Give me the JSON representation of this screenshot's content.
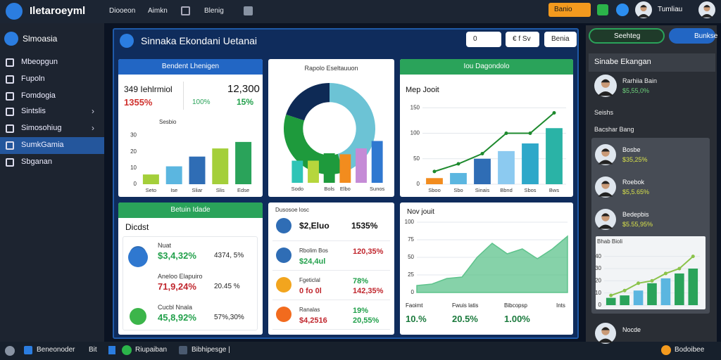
{
  "topbar": {
    "brand": "Iletaroeyml",
    "nav": [
      "Diooeon",
      "Aimkn",
      "Blenig"
    ],
    "button": "Banio",
    "user": "Tumliau"
  },
  "sidebar": {
    "title": "Slmoasia",
    "items": [
      "Mbeopgun",
      "Fupoln",
      "Fomdogia",
      "Sintslis",
      "Simosohiug",
      "SumkGamia",
      "Sbganan"
    ]
  },
  "main": {
    "title": "Sinnaka Ekondani Uetanai",
    "buttons": [
      "0",
      "€ f Sv",
      "Benia"
    ]
  },
  "cards": [
    {
      "title": "Bendent Lhenigen",
      "stats": [
        {
          "label": "349 Iehlrmiol",
          "value": "1355%",
          "color": "#d0312d"
        },
        {
          "label": "12,300",
          "value": "15%",
          "color": "#22a04b"
        }
      ],
      "note": "100%",
      "chart": {
        "type": "bar",
        "title": "Sesbio",
        "categories": [
          "Seto",
          "Ise",
          "Sliar",
          "Slis",
          "Edse"
        ],
        "series": [
          {
            "type": "bar",
            "colors": [
              "#a4cf3a",
              "#5bb6e0",
              "#2f6db5",
              "#a4cf3a",
              "#2aa35a"
            ],
            "values": [
              6,
              11,
              17,
              22,
              26
            ]
          }
        ],
        "ylim": [
          0,
          32
        ],
        "yticks": [
          0,
          10,
          20,
          30
        ],
        "grid": false
      }
    },
    {
      "title": "Rapolo Eseltauuon",
      "donut": {
        "type": "pie",
        "values": [
          45,
          35,
          20
        ],
        "colors": [
          "#6cc3d5",
          "#1e9a3c",
          "#0e2a55"
        ]
      },
      "chart": {
        "type": "bar",
        "categories": [
          "Sodo",
          null,
          "Bols",
          "Elbo",
          null,
          "Sunos"
        ],
        "series": [
          {
            "type": "bar",
            "colors": [
              "#2ec4b6",
              "#b6d63c",
              "#1e9a3c",
              "#f28c1e",
              "#c58bd6",
              "#2f78d0"
            ],
            "values": [
              45,
              45,
              60,
              58,
              70,
              85
            ]
          }
        ],
        "ylim": [
          0,
          100
        ]
      }
    },
    {
      "title": "Iou Dagondolo",
      "subtitle": "Mep Jooit",
      "chart": {
        "type": "bar",
        "categories": [
          "Sboo",
          "Sbo",
          "Sinais",
          "Bbnd",
          "Sbos",
          "Bws"
        ],
        "series": [
          {
            "type": "bar",
            "colors": [
              "#f28c1e",
              "#5bb6e0",
              "#2f6db5",
              "#8ccaf0",
              "#2ea8c9",
              "#2ab3a6"
            ],
            "values": [
              12,
              22,
              50,
              65,
              80,
              110
            ]
          },
          {
            "type": "line",
            "color": "#1e8a2e",
            "values": [
              25,
              40,
              60,
              100,
              100,
              140
            ]
          }
        ],
        "ylim": [
          0,
          160
        ],
        "yticks": [
          0,
          50,
          100,
          150
        ],
        "grid": true
      }
    },
    {
      "title": "Betuin Idade",
      "subtitle": "Dicdst",
      "rows": [
        {
          "label": "Nuat",
          "value": "$3,4,32%",
          "change": "4374, 5%",
          "color": "#22a04b"
        },
        {
          "label": "Aneloo Elapuiro",
          "value": "71,9,24%",
          "change": "20.45 %",
          "color": "#c0262d"
        },
        {
          "label": "Cucbl Nnala",
          "value": "45,8,92%",
          "change": "57%,30%",
          "color": "#22a04b"
        }
      ]
    },
    {
      "title": "Dusosoe losc",
      "rows": [
        {
          "label": "$2,Eluo",
          "value": "1535%",
          "color": "#111111"
        },
        {
          "label": "Rbolim Bos",
          "value": "120,35%",
          "sub": "$24,4ul",
          "color": "#c0262d"
        },
        {
          "label": "Fgeticlal",
          "value": "78%",
          "sub": "0 fo 0l",
          "change": "142,35%",
          "color": "#22a04b"
        },
        {
          "label": "Ranalas",
          "value": "19%",
          "sub": "$4,2516",
          "change": "20,55%",
          "color": "#22a04b"
        }
      ]
    },
    {
      "title": "Nov jouit",
      "chart": {
        "type": "area",
        "series": [
          {
            "type": "area",
            "color": "#5ec38c",
            "values": [
              10,
              12,
              20,
              22,
              50,
              70,
              55,
              62,
              48,
              62,
              80
            ]
          }
        ],
        "ylim": [
          0,
          100
        ],
        "yticks": [
          0,
          25,
          50,
          75,
          100
        ],
        "grid": true
      },
      "footer": [
        {
          "label": "Faoimt",
          "value": "10.%"
        },
        {
          "label": "Fwuis latis",
          "value": "20.5%"
        },
        {
          "label": "Bibcopsp",
          "value": "1.00%"
        },
        {
          "label": "Ints"
        }
      ]
    }
  ],
  "panel": {
    "buttons": [
      "Seehteg",
      "Bunkse"
    ],
    "title": "Sinabe Ekangan",
    "profile": {
      "name": "Rarhiia Bain",
      "value": "$5,55,0%"
    },
    "section": "Seishs",
    "subtitle": "Bacshar Bang",
    "people": [
      {
        "name": "Bosbe",
        "value": "$35,25%"
      },
      {
        "name": "Roebok",
        "value": "$5,5.65%"
      },
      {
        "name": "Bedepbis",
        "value": "$5.55,95%"
      }
    ],
    "chart": {
      "type": "bar",
      "title": "Bhab Bioli",
      "series": [
        {
          "type": "bar",
          "colors": [
            "#2aa35a",
            "#2aa35a",
            "#5bb6e0",
            "#2aa35a",
            "#5bb6e0",
            "#2aa35a",
            "#2aa35a"
          ],
          "values": [
            6,
            8,
            12,
            18,
            22,
            26,
            30
          ]
        },
        {
          "type": "line",
          "color": "#8bc34a",
          "values": [
            8,
            12,
            18,
            20,
            26,
            30,
            40
          ]
        }
      ],
      "categories": [
        null,
        null,
        null,
        null,
        null,
        null,
        null
      ],
      "ylim": [
        0,
        45
      ],
      "yticks": [
        0,
        10,
        20,
        30,
        40
      ],
      "grid": true
    },
    "footer_person": "Nocde"
  },
  "bottombar": {
    "items": [
      "Beneonoder",
      "Bit",
      "Riupaiban",
      "Bibhipesge |"
    ],
    "right": "Bodoibee"
  }
}
